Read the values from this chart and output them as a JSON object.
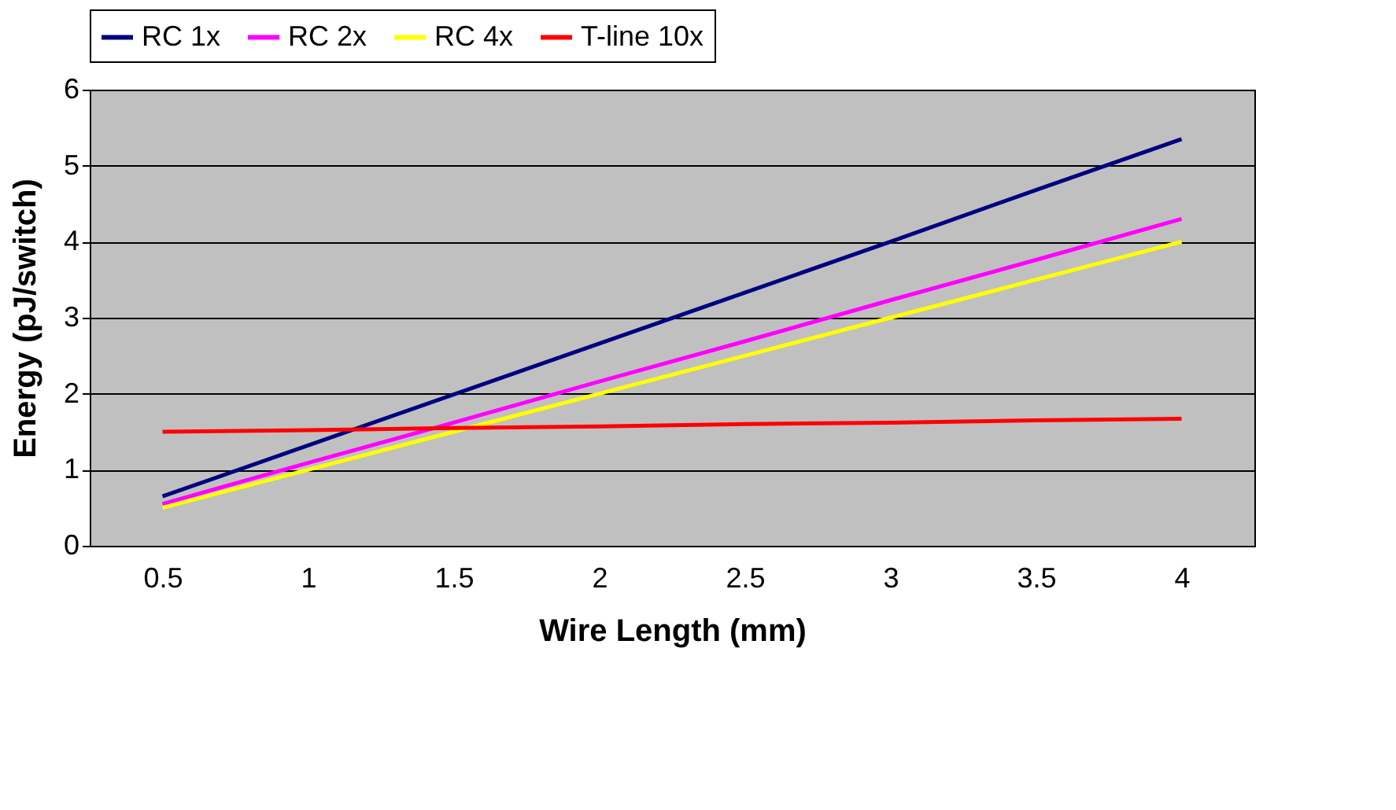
{
  "chart_data": {
    "type": "line",
    "xlabel": "Wire Length (mm)",
    "ylabel": "Energy (pJ/switch)",
    "categories": [
      "0.5",
      "1",
      "1.5",
      "2",
      "2.5",
      "3",
      "3.5",
      "4"
    ],
    "series": [
      {
        "name": "RC 1x",
        "color": "#000080",
        "values": [
          0.65,
          1.32,
          1.99,
          2.66,
          3.33,
          4.0,
          4.68,
          5.35
        ]
      },
      {
        "name": "RC 2x",
        "color": "#ff00ff",
        "values": [
          0.55,
          1.09,
          1.62,
          2.16,
          2.69,
          3.23,
          3.76,
          4.3
        ]
      },
      {
        "name": "RC 4x",
        "color": "#ffff00",
        "values": [
          0.5,
          1.0,
          1.5,
          2.0,
          2.5,
          3.0,
          3.5,
          4.0
        ]
      },
      {
        "name": "T-line 10x",
        "color": "#ff0000",
        "values": [
          1.5,
          1.52,
          1.55,
          1.57,
          1.6,
          1.62,
          1.65,
          1.67
        ]
      }
    ],
    "ylim": [
      0,
      6
    ],
    "yticks": [
      0,
      1,
      2,
      3,
      4,
      5,
      6
    ],
    "grid": "y",
    "legend": "top",
    "marker": "none",
    "line_style": "solid"
  }
}
